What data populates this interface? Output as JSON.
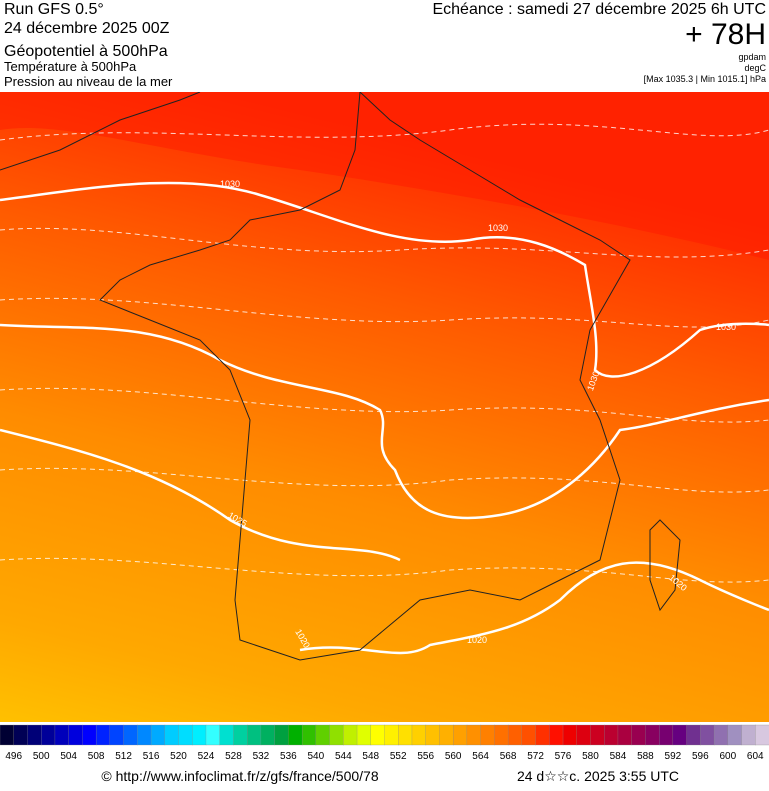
{
  "header": {
    "run": "Run GFS 0.5°",
    "date": "24 décembre 2025 00Z",
    "field1": "Géopotentiel à 500hPa",
    "field2": "Température à 500hPa",
    "field3": "Pression au niveau de la mer",
    "valid": "Echéance : samedi 27 décembre 2025 6h UTC",
    "lead": "+ 78H",
    "unit1": "gpdam",
    "unit2": "degC",
    "range": "[Max 1035.3 | Min 1015.1] hPa"
  },
  "map": {
    "isobar_labels": [
      "1030",
      "1030",
      "1030",
      "1030",
      "1025",
      "1020",
      "1020",
      "1020"
    ]
  },
  "colorbar": {
    "labels": [
      496,
      500,
      504,
      508,
      512,
      516,
      520,
      524,
      528,
      532,
      536,
      540,
      544,
      548,
      552,
      556,
      560,
      564,
      568,
      572,
      576,
      580,
      584,
      588,
      592,
      596,
      600,
      604
    ],
    "colors": [
      "#000033",
      "#000055",
      "#000077",
      "#000099",
      "#0000bb",
      "#0000dd",
      "#0000ff",
      "#0022ff",
      "#0044ff",
      "#0066ff",
      "#0088ff",
      "#00aaff",
      "#00ccff",
      "#00ddff",
      "#00eeff",
      "#33ffff",
      "#00e0d0",
      "#00d0a0",
      "#00c080",
      "#00b060",
      "#00a040",
      "#00b000",
      "#30c000",
      "#60d000",
      "#90e000",
      "#c0f000",
      "#e0ff00",
      "#ffff00",
      "#fff000",
      "#ffe000",
      "#ffd000",
      "#ffc000",
      "#ffb000",
      "#ffa000",
      "#ff9000",
      "#ff8000",
      "#ff7000",
      "#ff6000",
      "#ff5000",
      "#ff3000",
      "#ff1000",
      "#ee0000",
      "#dd0010",
      "#cc0020",
      "#bb0030",
      "#aa0040",
      "#990050",
      "#880060",
      "#770070",
      "#660080",
      "#703090",
      "#8050a0",
      "#9070b0",
      "#a090c0",
      "#c0b0d0",
      "#d8c8e0"
    ]
  },
  "footer": {
    "url": "© http://www.infoclimat.fr/z/gfs/france/500/78",
    "stamp": "24 d☆☆c. 2025  3:55 UTC"
  }
}
